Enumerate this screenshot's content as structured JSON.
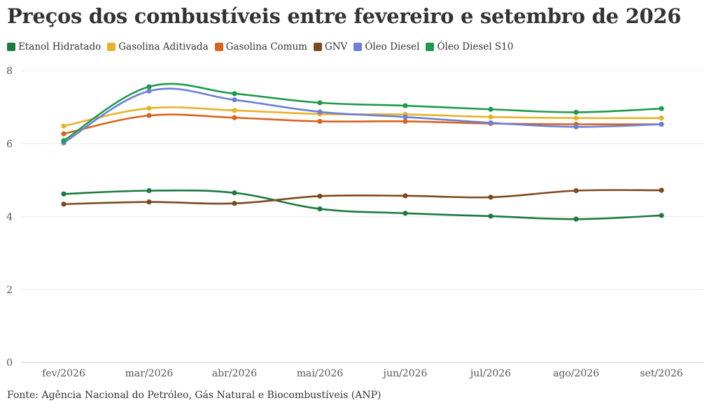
{
  "title": "Preços dos combustíveis entre fevereiro e setembro de 2026",
  "source": "Fonte: Agência Nacional do Petróleo, Gás Natural e Biocombustíveis (ANP)",
  "chart_data": {
    "type": "line",
    "title": "Preços dos combustíveis entre fevereiro e setembro de 2026",
    "xlabel": "",
    "ylabel": "",
    "ylim": [
      0,
      8
    ],
    "yticks": [
      "0",
      "2",
      "4",
      "6",
      "8"
    ],
    "grid": true,
    "legend_position": "top-left",
    "categories": [
      "fev/2026",
      "mar/2026",
      "abr/2026",
      "mai/2026",
      "jun/2026",
      "jul/2026",
      "ago/2026",
      "set/2026"
    ],
    "series": [
      {
        "name": "Etanol Hidratado",
        "color": "#1b7a3e",
        "values": [
          4.62,
          4.71,
          4.65,
          4.21,
          4.09,
          4.01,
          3.93,
          4.03
        ]
      },
      {
        "name": "Gasolina Aditivada",
        "color": "#e8b32a",
        "values": [
          6.48,
          6.97,
          6.91,
          6.81,
          6.8,
          6.73,
          6.7,
          6.7
        ]
      },
      {
        "name": "Gasolina Comum",
        "color": "#d9641e",
        "values": [
          6.27,
          6.77,
          6.71,
          6.61,
          6.61,
          6.55,
          6.53,
          6.53
        ]
      },
      {
        "name": "GNV",
        "color": "#7b4a1e",
        "values": [
          4.34,
          4.4,
          4.36,
          4.56,
          4.57,
          4.53,
          4.71,
          4.72
        ]
      },
      {
        "name": "Óleo Diesel",
        "color": "#6b80d6",
        "values": [
          6.02,
          7.44,
          7.2,
          6.87,
          6.73,
          6.57,
          6.46,
          6.53
        ]
      },
      {
        "name": "Óleo Diesel S10",
        "color": "#1f9a4a",
        "values": [
          6.08,
          7.56,
          7.37,
          7.12,
          7.04,
          6.94,
          6.86,
          6.96
        ]
      }
    ]
  }
}
